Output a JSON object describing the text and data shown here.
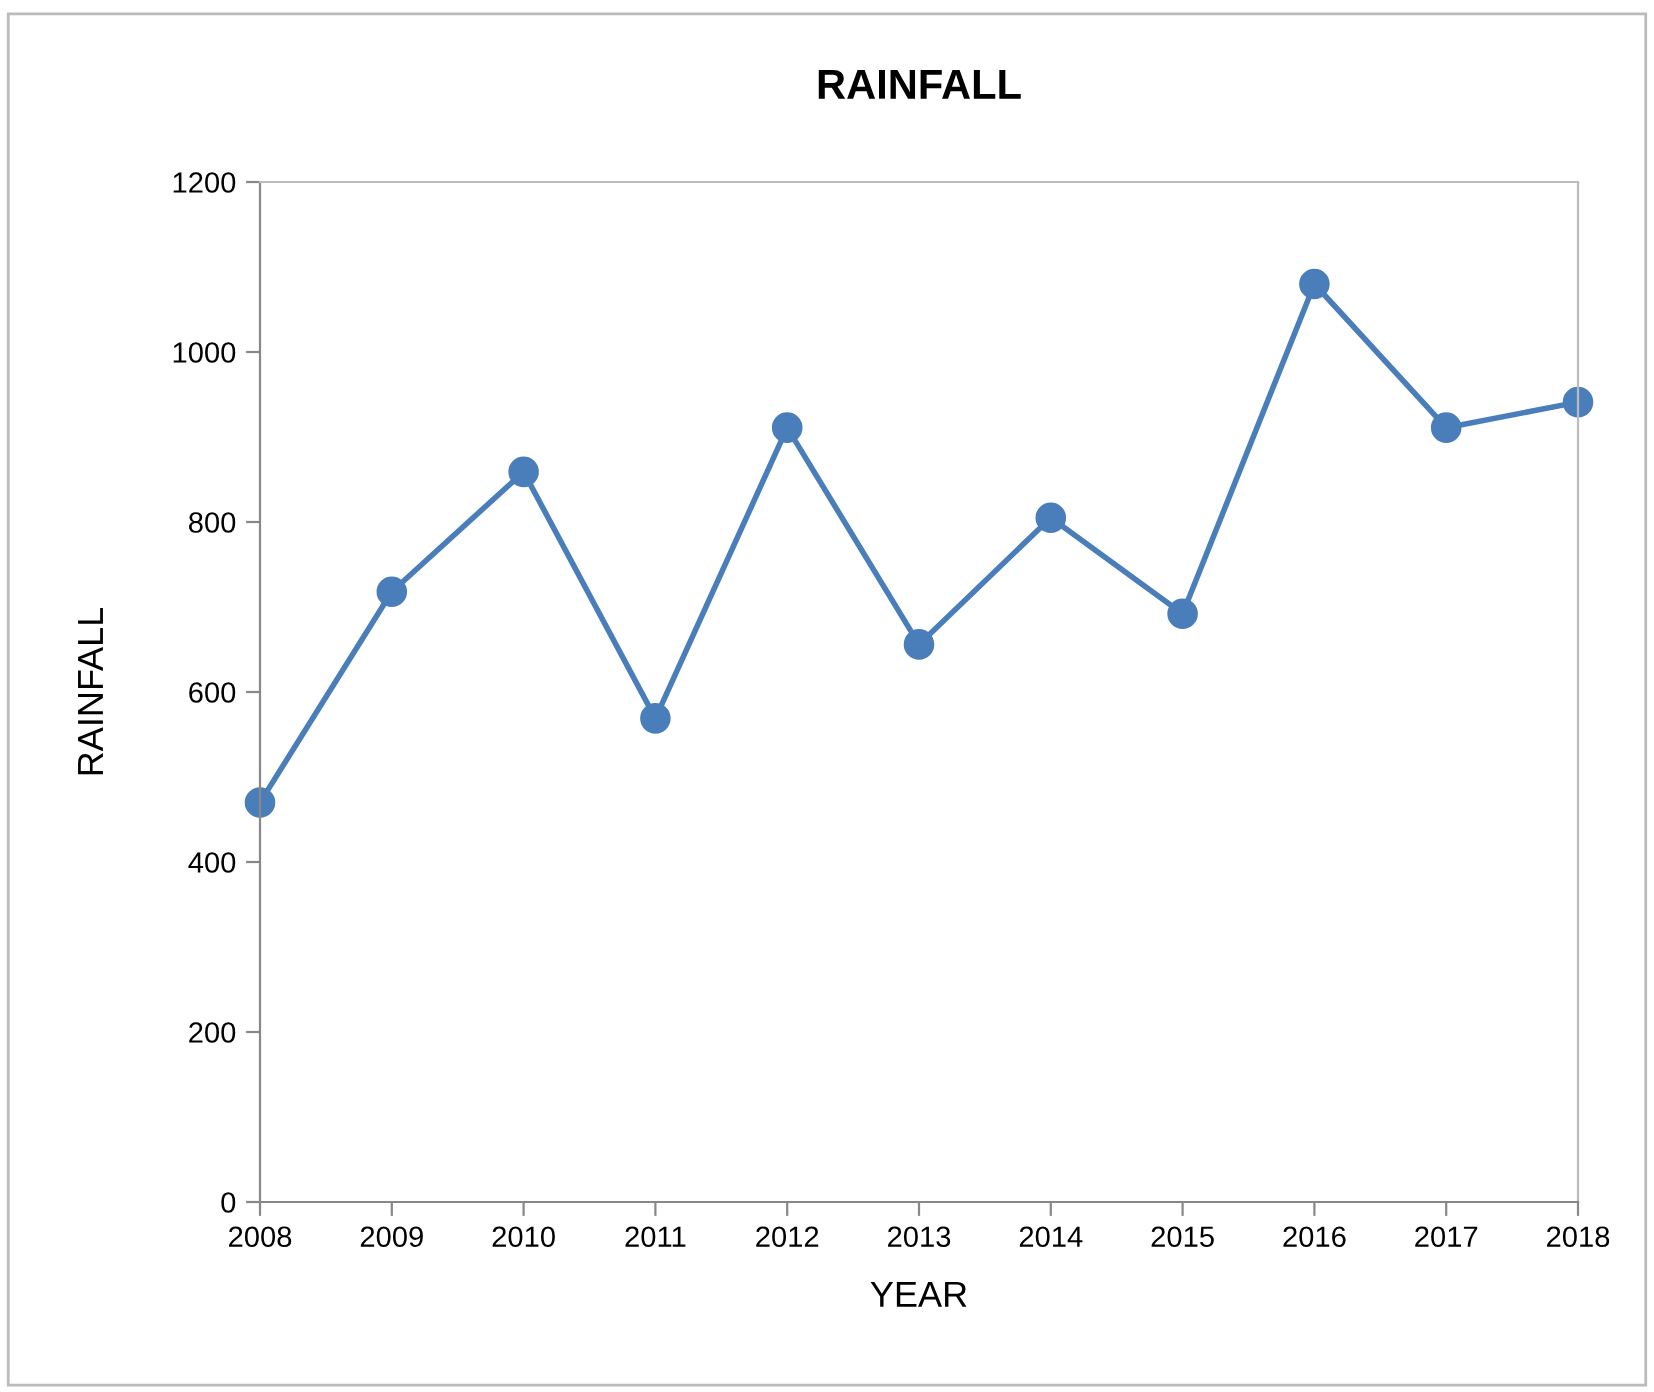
{
  "chart_data": {
    "type": "line",
    "title": "RAINFALL",
    "xlabel": "YEAR",
    "ylabel": "RAINFALL",
    "x": [
      2008,
      2009,
      2010,
      2011,
      2012,
      2013,
      2014,
      2015,
      2016,
      2017,
      2018
    ],
    "series": [
      {
        "color": "#4a7ebb",
        "values": [
          470,
          718,
          859,
          569,
          911,
          656,
          805,
          692,
          1080,
          911,
          941
        ]
      }
    ],
    "xlim": [
      2008,
      2018
    ],
    "xticks": [
      2008,
      2009,
      2010,
      2011,
      2012,
      2013,
      2014,
      2015,
      2016,
      2017,
      2018
    ],
    "ylim": [
      0,
      1200
    ],
    "yticks": [
      0,
      200,
      400,
      600,
      800,
      1000,
      1200
    ],
    "grid": false,
    "legend": false,
    "marker": "circle",
    "line_style": "solid"
  }
}
